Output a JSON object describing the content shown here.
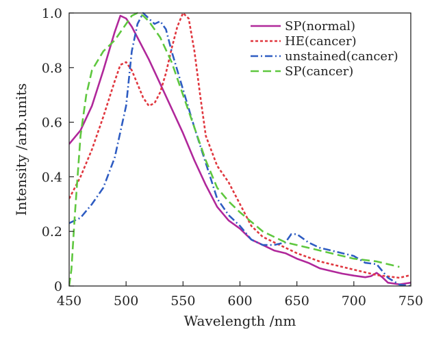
{
  "chart_data": {
    "type": "line",
    "title": "",
    "xlabel": "Wavelength /nm",
    "ylabel": "Intensity /arb.units",
    "xlim": [
      450,
      750
    ],
    "ylim": [
      0,
      1.0
    ],
    "xticks": [
      450,
      500,
      550,
      600,
      650,
      700,
      750
    ],
    "yticks": [
      0,
      0.2,
      0.4,
      0.6,
      0.8,
      1.0
    ],
    "xtick_labels": [
      "450",
      "500",
      "550",
      "600",
      "650",
      "700",
      "750"
    ],
    "ytick_labels": [
      "0",
      "0.2",
      "0.4",
      "0.6",
      "0.8",
      "1.0"
    ],
    "grid": false,
    "legend_position": "top-right",
    "series": [
      {
        "name": "SP(normal)",
        "color": "#b0279a",
        "dash": "solid",
        "x": [
          450,
          460,
          470,
          480,
          490,
          495,
          500,
          505,
          510,
          520,
          530,
          540,
          550,
          560,
          570,
          580,
          590,
          600,
          610,
          620,
          630,
          640,
          650,
          660,
          670,
          680,
          690,
          700,
          710,
          715,
          720,
          725,
          730,
          740,
          750
        ],
        "y": [
          0.52,
          0.57,
          0.66,
          0.79,
          0.93,
          0.99,
          0.98,
          0.95,
          0.91,
          0.83,
          0.74,
          0.65,
          0.56,
          0.46,
          0.37,
          0.29,
          0.24,
          0.21,
          0.17,
          0.15,
          0.13,
          0.12,
          0.1,
          0.085,
          0.065,
          0.055,
          0.045,
          0.038,
          0.032,
          0.036,
          0.048,
          0.032,
          0.012,
          0.006,
          0.012
        ]
      },
      {
        "name": "HE(cancer)",
        "color": "#e0363e",
        "dash": "dotted",
        "x": [
          450,
          460,
          470,
          480,
          490,
          495,
          500,
          505,
          510,
          515,
          520,
          525,
          530,
          535,
          540,
          545,
          550,
          555,
          560,
          565,
          570,
          580,
          590,
          600,
          610,
          620,
          630,
          650,
          670,
          700,
          720,
          740,
          750
        ],
        "y": [
          0.32,
          0.4,
          0.5,
          0.62,
          0.75,
          0.81,
          0.82,
          0.79,
          0.74,
          0.69,
          0.66,
          0.67,
          0.71,
          0.78,
          0.87,
          0.95,
          1.0,
          0.98,
          0.86,
          0.7,
          0.55,
          0.44,
          0.38,
          0.3,
          0.22,
          0.18,
          0.16,
          0.12,
          0.09,
          0.06,
          0.04,
          0.03,
          0.04
        ]
      },
      {
        "name": "unstained(cancer)",
        "color": "#2e5cc2",
        "dash": "dashdot",
        "x": [
          450,
          460,
          470,
          480,
          490,
          500,
          505,
          510,
          515,
          520,
          525,
          530,
          535,
          540,
          550,
          560,
          570,
          580,
          590,
          600,
          610,
          620,
          630,
          640,
          645,
          650,
          660,
          670,
          680,
          690,
          700,
          710,
          720,
          730,
          740,
          750
        ],
        "y": [
          0.23,
          0.25,
          0.3,
          0.36,
          0.47,
          0.66,
          0.86,
          0.96,
          1.0,
          0.98,
          0.96,
          0.97,
          0.94,
          0.86,
          0.72,
          0.58,
          0.45,
          0.32,
          0.26,
          0.22,
          0.17,
          0.15,
          0.15,
          0.16,
          0.19,
          0.19,
          0.16,
          0.14,
          0.13,
          0.12,
          0.11,
          0.085,
          0.08,
          0.03,
          0.005,
          0.0
        ]
      },
      {
        "name": "SP(cancer)",
        "color": "#5ec73e",
        "dash": "dashed",
        "x": [
          450,
          452,
          455,
          460,
          465,
          470,
          480,
          490,
          500,
          505,
          510,
          515,
          520,
          530,
          540,
          550,
          560,
          570,
          580,
          590,
          600,
          620,
          640,
          660,
          680,
          700,
          720,
          740
        ],
        "y": [
          0.0,
          0.06,
          0.26,
          0.55,
          0.7,
          0.79,
          0.86,
          0.9,
          0.96,
          0.99,
          1.0,
          0.99,
          0.97,
          0.91,
          0.82,
          0.7,
          0.58,
          0.46,
          0.36,
          0.31,
          0.27,
          0.2,
          0.16,
          0.14,
          0.12,
          0.1,
          0.09,
          0.07
        ]
      }
    ]
  }
}
